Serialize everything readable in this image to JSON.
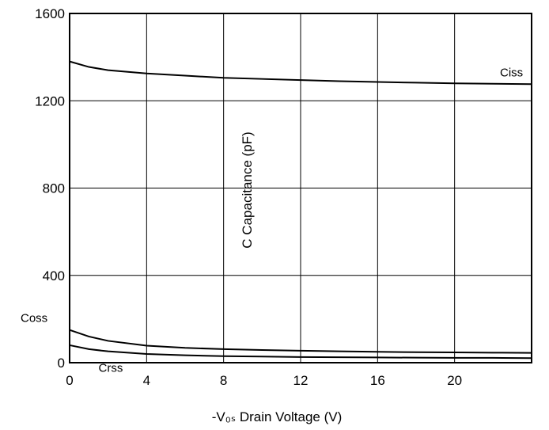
{
  "chart_data": {
    "type": "line",
    "title": "",
    "xlabel": "-V₀ₛ Drain Voltage (V)",
    "ylabel": "C Capacitance (pF)",
    "xlim": [
      0,
      24
    ],
    "ylim": [
      0,
      1600
    ],
    "x_ticks": [
      0,
      4,
      8,
      12,
      16,
      20
    ],
    "y_ticks": [
      0,
      400,
      800,
      1200,
      1600
    ],
    "grid": true,
    "series": [
      {
        "name": "Ciss",
        "x": [
          0,
          1,
          2,
          4,
          6,
          8,
          10,
          12,
          14,
          16,
          18,
          20,
          22,
          24
        ],
        "y": [
          1380,
          1355,
          1340,
          1325,
          1315,
          1305,
          1300,
          1295,
          1290,
          1286,
          1283,
          1280,
          1278,
          1276
        ]
      },
      {
        "name": "Coss",
        "x": [
          0,
          1,
          2,
          4,
          6,
          8,
          10,
          12,
          14,
          16,
          18,
          20,
          22,
          24
        ],
        "y": [
          150,
          120,
          100,
          78,
          68,
          62,
          58,
          55,
          52,
          50,
          48,
          47,
          46,
          45
        ]
      },
      {
        "name": "Crss",
        "x": [
          0,
          1,
          2,
          4,
          6,
          8,
          10,
          12,
          14,
          16,
          18,
          20,
          22,
          24
        ],
        "y": [
          80,
          62,
          52,
          40,
          34,
          30,
          28,
          26,
          25,
          24,
          23,
          22,
          22,
          21
        ]
      }
    ]
  }
}
